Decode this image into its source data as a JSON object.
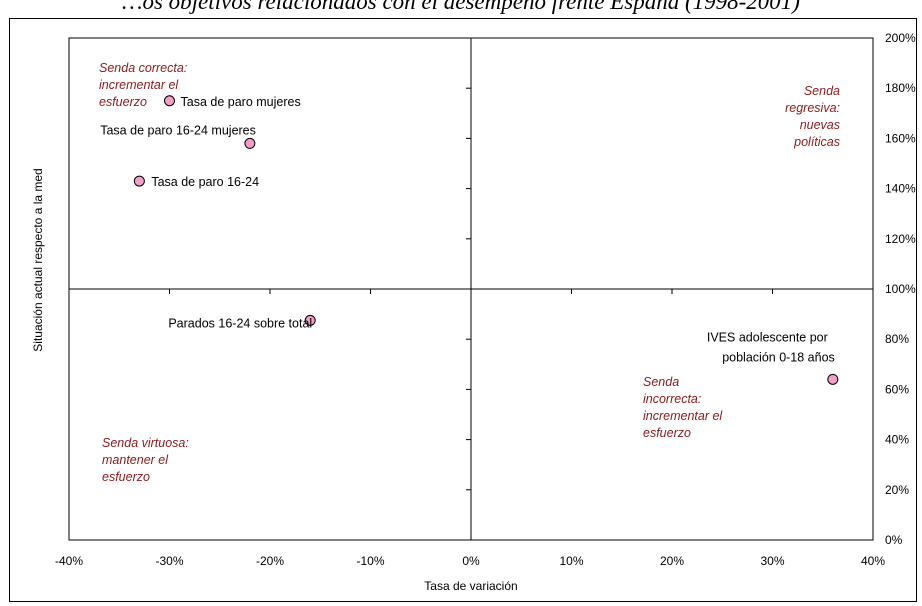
{
  "title": "…os objetivos relacionados con el desempeño frente España (1998-2001)",
  "chart_data": {
    "type": "scatter",
    "xlabel": "Tasa de variación",
    "ylabel": "Situación actual respecto a la med",
    "xlim": [
      -0.4,
      0.4
    ],
    "ylim": [
      0,
      2
    ],
    "x_ticks": [
      "-40%",
      "-30%",
      "-20%",
      "-10%",
      "0%",
      "10%",
      "20%",
      "30%",
      "40%"
    ],
    "y_ticks": [
      "0%",
      "20%",
      "40%",
      "60%",
      "80%",
      "100%",
      "120%",
      "140%",
      "160%",
      "180%",
      "200%"
    ],
    "points": [
      {
        "label": "Tasa de paro mujeres",
        "x": -0.3,
        "y": 1.75
      },
      {
        "label": "Tasa de paro 16-24 mujeres",
        "x": -0.22,
        "y": 1.58
      },
      {
        "label": "Tasa de paro 16-24",
        "x": -0.33,
        "y": 1.43
      },
      {
        "label": "Parados 16-24 sobre total",
        "x": -0.16,
        "y": 0.875
      },
      {
        "label": "IVES adolescente por población 0-18 años",
        "x": 0.36,
        "y": 0.64
      }
    ],
    "quadrant_labels": [
      {
        "quadrant": "top-left",
        "lines": [
          "Senda correcta:",
          "incrementar el",
          "esfuerzo"
        ]
      },
      {
        "quadrant": "top-right",
        "lines": [
          "Senda",
          "regresiva:",
          "nuevas",
          "políticas"
        ]
      },
      {
        "quadrant": "bottom-left",
        "lines": [
          "Senda virtuosa:",
          "mantener el",
          "esfuerzo"
        ]
      },
      {
        "quadrant": "bottom-right",
        "lines": [
          "Senda",
          "incorrecta:",
          "incrementar el",
          "esfuerzo"
        ]
      }
    ],
    "colors": {
      "marker_fill": "#f0a0c8",
      "marker_stroke": "#000000",
      "quadrant_text": "#8b1a1a"
    }
  }
}
